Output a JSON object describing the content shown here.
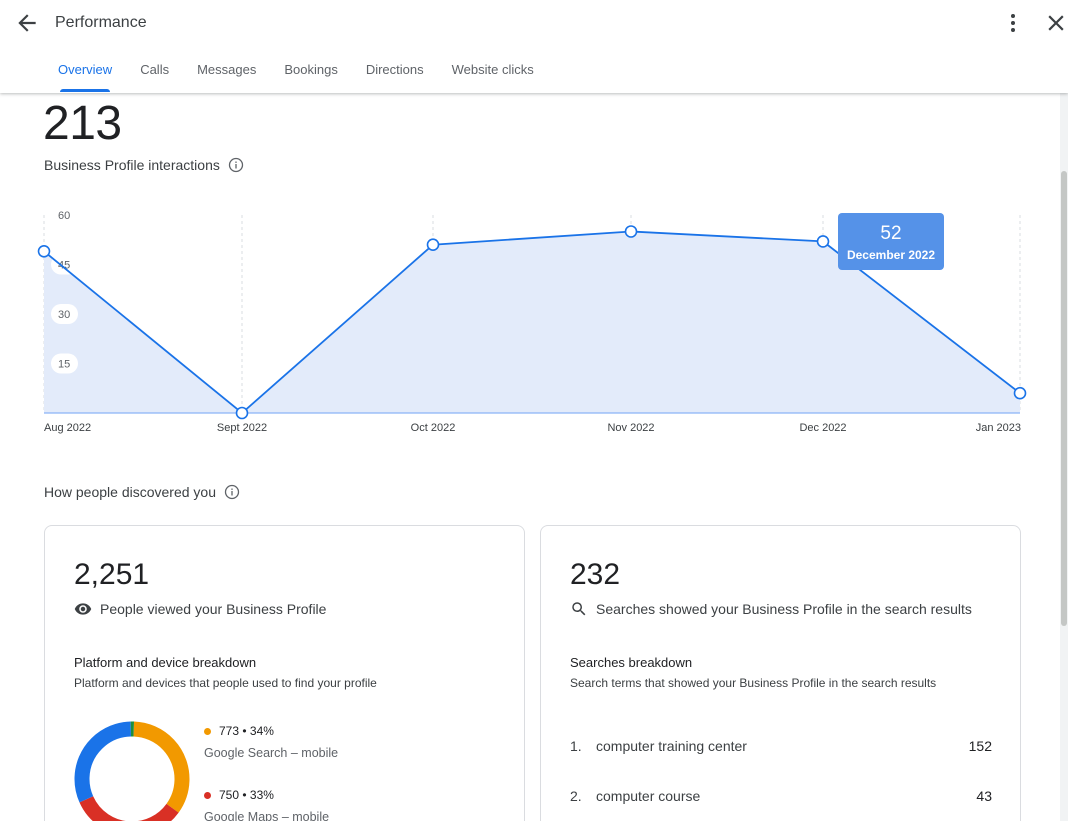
{
  "header": {
    "title": "Performance",
    "tabs": [
      "Overview",
      "Calls",
      "Messages",
      "Bookings",
      "Directions",
      "Website clicks"
    ],
    "active_tab": "Overview"
  },
  "summary": {
    "total": "213",
    "label": "Business Profile interactions"
  },
  "chart_data": {
    "type": "area",
    "categories": [
      "Aug 2022",
      "Sept 2022",
      "Oct 2022",
      "Nov 2022",
      "Dec 2022",
      "Jan 2023"
    ],
    "values": [
      49,
      0,
      51,
      55,
      52,
      6
    ],
    "yticks": [
      60,
      45,
      30,
      15
    ],
    "ylim": [
      0,
      60
    ],
    "line_color": "#1a73e8",
    "fill_color": "#e3ebfa",
    "tooltip": {
      "value": "52",
      "label": "December 2022"
    }
  },
  "discovery": {
    "title": "How people discovered you"
  },
  "profile_views": {
    "value": "2,251",
    "description": "People viewed your Business Profile",
    "breakdown_title": "Platform and device breakdown",
    "breakdown_subtitle": "Platform and devices that people used to find your profile",
    "donut": [
      {
        "label": "Google Search – mobile",
        "value": 773,
        "stat": "773 • 34%",
        "color": "#f29900"
      },
      {
        "label": "Google Maps – mobile",
        "value": 750,
        "stat": "750 • 33%",
        "color": "#d93025"
      },
      {
        "label": "",
        "value": 703,
        "color": "#1a73e8"
      },
      {
        "label": "",
        "value": 25,
        "color": "#1e8e3e"
      }
    ]
  },
  "searches": {
    "value": "232",
    "description": "Searches showed your Business Profile in the search results",
    "breakdown_title": "Searches breakdown",
    "breakdown_subtitle": "Search terms that showed your Business Profile in the search results",
    "rows": [
      {
        "index": "1.",
        "term": "computer training center",
        "count": "152"
      },
      {
        "index": "2.",
        "term": "computer course",
        "count": "43"
      }
    ]
  }
}
